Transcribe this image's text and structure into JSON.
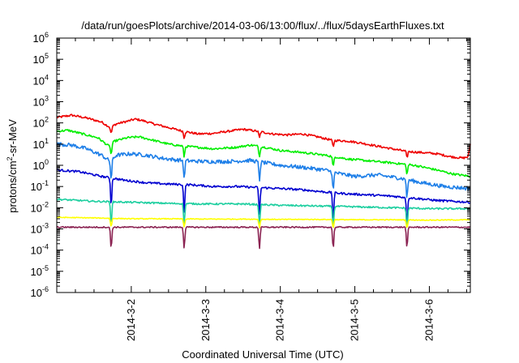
{
  "chart_data": {
    "type": "line",
    "title": "/data/run/goesPlots/archive/2014-03-06/13:00/flux/../flux/5daysEarthFluxes.txt",
    "xlabel": "Coordinated Universal Time (UTC)",
    "ylabel": {
      "base": "protons/cm",
      "sup": "2",
      "rest": "-sr-MeV"
    },
    "x_range_days": [
      0.0,
      5.55
    ],
    "x_ticks": [
      {
        "t": 1.0,
        "label": "2014-3-2"
      },
      {
        "t": 2.0,
        "label": "2014-3-3"
      },
      {
        "t": 3.0,
        "label": "2014-3-4"
      },
      {
        "t": 4.0,
        "label": "2014-3-5"
      },
      {
        "t": 5.0,
        "label": "2014-3-6"
      }
    ],
    "y_scale": "log",
    "y_range_exp": [
      -6,
      6
    ],
    "y_ticks": [
      {
        "exp": -6,
        "base": "10",
        "sup": "-6"
      },
      {
        "exp": -5,
        "base": "10",
        "sup": "-5"
      },
      {
        "exp": -4,
        "base": "10",
        "sup": "-4"
      },
      {
        "exp": -3,
        "base": "10",
        "sup": "-3"
      },
      {
        "exp": -2,
        "base": "10",
        "sup": "-2"
      },
      {
        "exp": -1,
        "base": "10",
        "sup": "-1"
      },
      {
        "exp": 0,
        "base": "10",
        "sup": "0"
      },
      {
        "exp": 1,
        "base": "10",
        "sup": "1"
      },
      {
        "exp": 2,
        "base": "10",
        "sup": "2"
      },
      {
        "exp": 3,
        "base": "10",
        "sup": "3"
      },
      {
        "exp": 4,
        "base": "10",
        "sup": "4"
      },
      {
        "exp": 5,
        "base": "10",
        "sup": "5"
      },
      {
        "exp": 6,
        "base": "10",
        "sup": "6"
      }
    ],
    "grid": false,
    "legend": "none",
    "dip_times": [
      0.73,
      1.71,
      2.72,
      3.71,
      4.7
    ],
    "series": [
      {
        "color": "#ee0000",
        "points": [
          [
            0.0,
            180
          ],
          [
            0.2,
            230
          ],
          [
            0.4,
            170
          ],
          [
            0.6,
            110
          ],
          [
            0.72,
            60
          ],
          [
            0.8,
            90
          ],
          [
            0.95,
            120
          ],
          [
            1.05,
            150
          ],
          [
            1.15,
            130
          ],
          [
            1.3,
            90
          ],
          [
            1.5,
            60
          ],
          [
            1.7,
            40
          ],
          [
            1.9,
            30
          ],
          [
            2.1,
            32
          ],
          [
            2.3,
            40
          ],
          [
            2.5,
            50
          ],
          [
            2.7,
            40
          ],
          [
            2.9,
            30
          ],
          [
            3.1,
            27
          ],
          [
            3.3,
            30
          ],
          [
            3.5,
            22
          ],
          [
            3.7,
            15
          ],
          [
            3.9,
            14
          ],
          [
            4.1,
            11
          ],
          [
            4.3,
            8
          ],
          [
            4.5,
            6
          ],
          [
            4.7,
            4.5
          ],
          [
            4.9,
            4
          ],
          [
            5.1,
            3.5
          ],
          [
            5.3,
            2.5
          ],
          [
            5.45,
            2.2
          ],
          [
            5.52,
            2.5
          ],
          [
            5.55,
            10
          ]
        ],
        "noise": 0.05,
        "dip_depth": 0.3
      },
      {
        "color": "#00ee00",
        "points": [
          [
            0.0,
            40
          ],
          [
            0.15,
            45
          ],
          [
            0.35,
            30
          ],
          [
            0.55,
            20
          ],
          [
            0.7,
            8
          ],
          [
            0.78,
            14
          ],
          [
            0.95,
            20
          ],
          [
            1.1,
            22
          ],
          [
            1.3,
            15
          ],
          [
            1.5,
            10
          ],
          [
            1.7,
            8
          ],
          [
            1.9,
            7
          ],
          [
            2.1,
            6
          ],
          [
            2.4,
            7
          ],
          [
            2.6,
            9
          ],
          [
            2.8,
            7
          ],
          [
            3.0,
            5
          ],
          [
            3.3,
            4
          ],
          [
            3.6,
            3
          ],
          [
            3.9,
            2
          ],
          [
            4.2,
            1.6
          ],
          [
            4.5,
            1.3
          ],
          [
            4.8,
            1.0
          ],
          [
            5.1,
            0.6
          ],
          [
            5.3,
            0.4
          ],
          [
            5.55,
            0.3
          ]
        ],
        "noise": 0.05,
        "dip_depth": 0.5
      },
      {
        "color": "#1e7fe8",
        "points": [
          [
            0.0,
            10
          ],
          [
            0.2,
            9
          ],
          [
            0.4,
            6
          ],
          [
            0.6,
            3
          ],
          [
            0.72,
            1.5
          ],
          [
            0.8,
            3
          ],
          [
            1.0,
            3.5
          ],
          [
            1.2,
            3
          ],
          [
            1.4,
            2.2
          ],
          [
            1.6,
            1.8
          ],
          [
            1.8,
            1.6
          ],
          [
            2.0,
            1.5
          ],
          [
            2.3,
            1.5
          ],
          [
            2.6,
            1.7
          ],
          [
            2.8,
            1.3
          ],
          [
            3.0,
            1.0
          ],
          [
            3.3,
            0.8
          ],
          [
            3.6,
            0.6
          ],
          [
            3.8,
            0.4
          ],
          [
            4.0,
            0.3
          ],
          [
            4.3,
            0.35
          ],
          [
            4.6,
            0.25
          ],
          [
            4.9,
            0.15
          ],
          [
            5.2,
            0.1
          ],
          [
            5.55,
            0.08
          ]
        ],
        "noise": 0.09,
        "dip_depth": 0.9
      },
      {
        "color": "#0000d0",
        "points": [
          [
            0.0,
            0.6
          ],
          [
            0.3,
            0.5
          ],
          [
            0.6,
            0.3
          ],
          [
            0.9,
            0.2
          ],
          [
            1.2,
            0.15
          ],
          [
            1.5,
            0.13
          ],
          [
            1.8,
            0.12
          ],
          [
            2.1,
            0.1
          ],
          [
            2.4,
            0.1
          ],
          [
            2.7,
            0.09
          ],
          [
            3.0,
            0.08
          ],
          [
            3.3,
            0.07
          ],
          [
            3.6,
            0.055
          ],
          [
            3.9,
            0.045
          ],
          [
            4.2,
            0.04
          ],
          [
            4.5,
            0.035
          ],
          [
            4.8,
            0.028
          ],
          [
            5.1,
            0.022
          ],
          [
            5.55,
            0.018
          ]
        ],
        "noise": 0.05,
        "dip_depth": 1.3
      },
      {
        "color": "#1ecfa0",
        "points": [
          [
            0.0,
            0.025
          ],
          [
            0.5,
            0.02
          ],
          [
            1.0,
            0.018
          ],
          [
            1.5,
            0.016
          ],
          [
            2.0,
            0.015
          ],
          [
            2.5,
            0.015
          ],
          [
            3.0,
            0.013
          ],
          [
            3.5,
            0.012
          ],
          [
            4.0,
            0.011
          ],
          [
            4.5,
            0.01
          ],
          [
            5.0,
            0.009
          ],
          [
            5.55,
            0.009
          ]
        ],
        "noise": 0.04,
        "dip_depth": 1.0
      },
      {
        "color": "#ffff00",
        "points": [
          [
            0.0,
            0.0035
          ],
          [
            0.5,
            0.0033
          ],
          [
            1.0,
            0.003
          ],
          [
            1.5,
            0.003
          ],
          [
            2.0,
            0.0029
          ],
          [
            2.5,
            0.0029
          ],
          [
            3.0,
            0.0028
          ],
          [
            3.5,
            0.0028
          ],
          [
            4.0,
            0.0027
          ],
          [
            4.5,
            0.0027
          ],
          [
            5.0,
            0.0026
          ],
          [
            5.55,
            0.0027
          ]
        ],
        "noise": 0.02,
        "dip_depth": 0.4
      },
      {
        "color": "#8b2352",
        "points": [
          [
            0.0,
            0.0012
          ],
          [
            0.5,
            0.0012
          ],
          [
            1.0,
            0.0012
          ],
          [
            1.5,
            0.0012
          ],
          [
            2.0,
            0.0012
          ],
          [
            2.5,
            0.0012
          ],
          [
            3.0,
            0.0012
          ],
          [
            3.5,
            0.0012
          ],
          [
            4.0,
            0.0012
          ],
          [
            4.5,
            0.0012
          ],
          [
            5.0,
            0.0012
          ],
          [
            5.55,
            0.0012
          ]
        ],
        "noise": 0.03,
        "dip_depth": 1.0
      }
    ]
  }
}
